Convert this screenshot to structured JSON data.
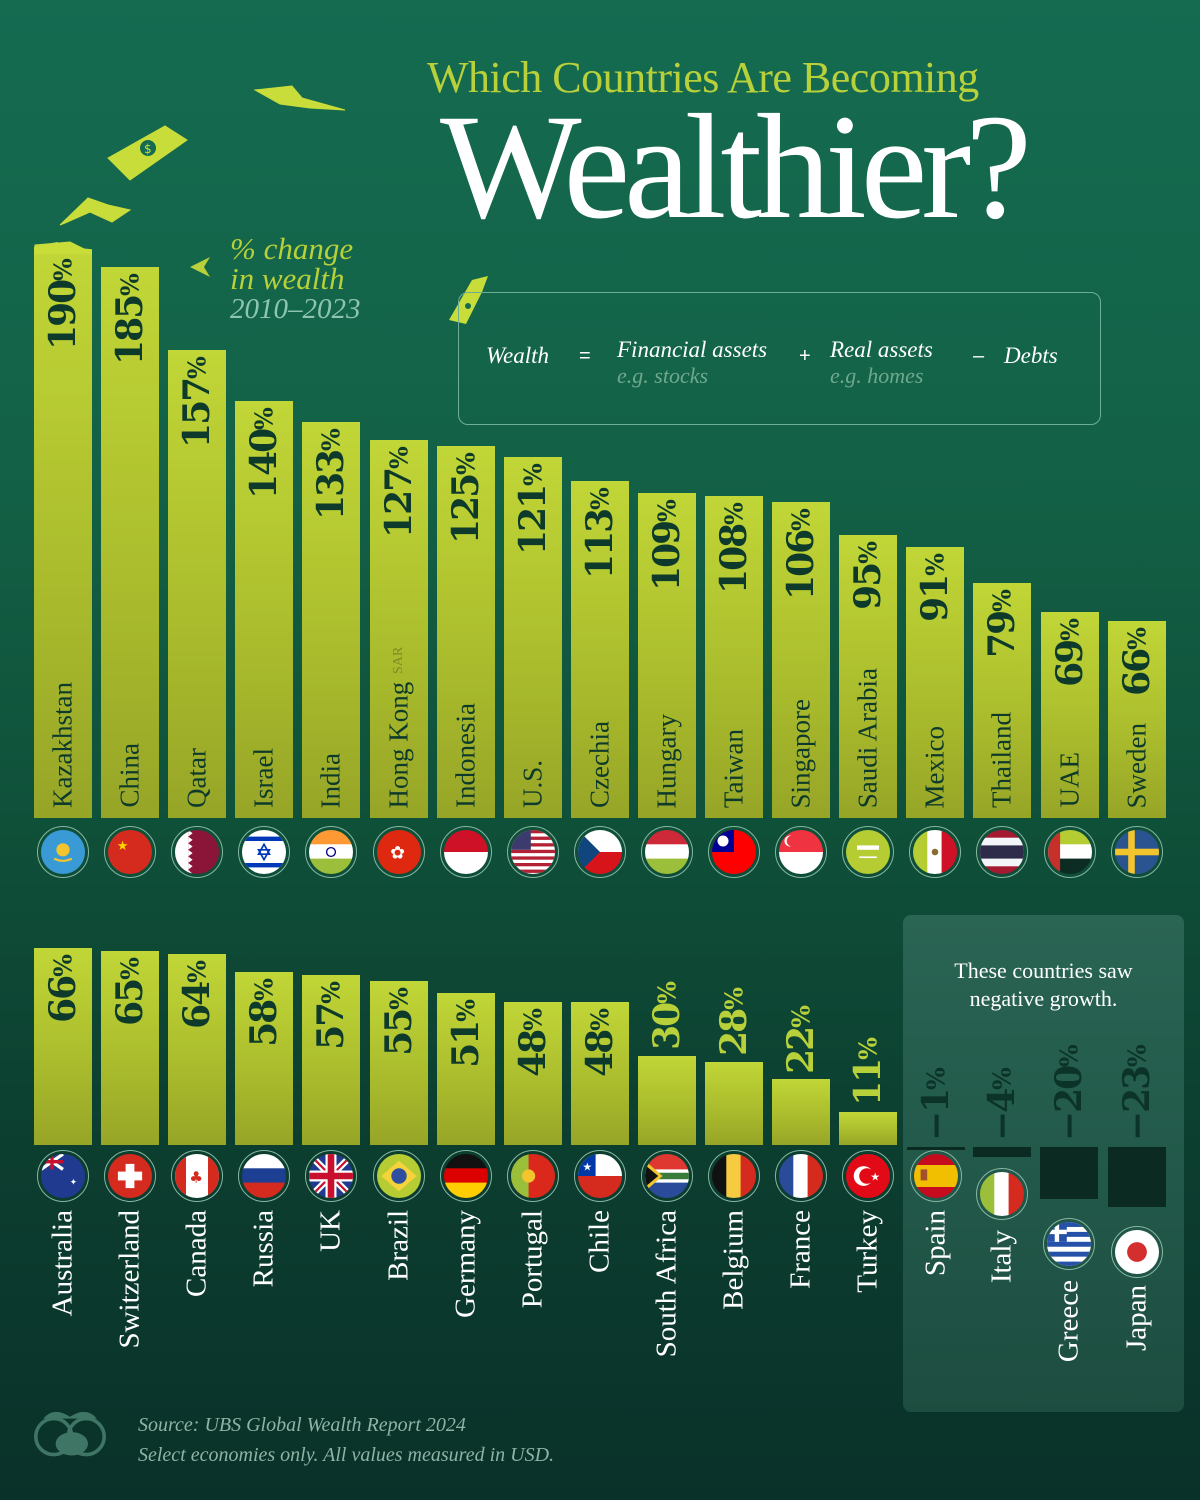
{
  "header": {
    "subtitle": "Which Countries Are Becoming",
    "title": "Wealthier?"
  },
  "legend_note": {
    "line1": "% change",
    "line2": "in wealth",
    "period": "2010–2023",
    "arrow_icon": "arrow-left-icon"
  },
  "formula": {
    "wealth": "Wealth",
    "equals": "=",
    "financial": "Financial assets",
    "financial_example": "e.g. stocks",
    "plus": "+",
    "real": "Real assets",
    "real_example": "e.g. homes",
    "minus": "–",
    "debts": "Debts"
  },
  "negative_panel": {
    "title_line1": "These countries saw",
    "title_line2": "negative growth."
  },
  "footer": {
    "source": "Source: UBS Global Wealth Report 2024",
    "note": "Select economies only. All values measured in USD.",
    "logo_icon": "binoculars-piggybank-logo-icon"
  },
  "colors": {
    "background_top": "#146b50",
    "background_bottom": "#0a3129",
    "bar": "#b5cc33",
    "bar_text": "#0d3a2a",
    "accent": "#b8d03a",
    "negative_bar": "#0a2a22",
    "negative_panel": "#255d4d"
  },
  "chart_data": {
    "type": "bar",
    "title": "Which Countries Are Becoming Wealthier?",
    "subtitle": "% change in wealth 2010–2023",
    "xlabel": "",
    "ylabel": "% change in wealth",
    "grid": false,
    "legend": "none",
    "categories": [
      "Kazakhstan",
      "China",
      "Qatar",
      "Israel",
      "India",
      "Hong Kong SAR",
      "Indonesia",
      "U.S.",
      "Czechia",
      "Hungary",
      "Taiwan",
      "Singapore",
      "Saudi Arabia",
      "Mexico",
      "Thailand",
      "UAE",
      "Sweden",
      "Australia",
      "Switzerland",
      "Canada",
      "Russia",
      "UK",
      "Brazil",
      "Germany",
      "Portugal",
      "Chile",
      "South Africa",
      "Belgium",
      "France",
      "Turkey",
      "Spain",
      "Italy",
      "Greece",
      "Japan"
    ],
    "values": [
      190,
      185,
      157,
      140,
      133,
      127,
      125,
      121,
      113,
      109,
      108,
      106,
      95,
      91,
      79,
      69,
      66,
      66,
      65,
      64,
      58,
      57,
      55,
      51,
      48,
      48,
      30,
      28,
      22,
      11,
      -1,
      -4,
      -20,
      -23
    ],
    "value_labels": [
      "190%",
      "185%",
      "157%",
      "140%",
      "133%",
      "127%",
      "125%",
      "121%",
      "113%",
      "109%",
      "108%",
      "106%",
      "95%",
      "91%",
      "79%",
      "69%",
      "66%",
      "66%",
      "65%",
      "64%",
      "58%",
      "57%",
      "55%",
      "51%",
      "48%",
      "48%",
      "30%",
      "28%",
      "22%",
      "11%",
      "−1%",
      "−4%",
      "−20%",
      "−23%"
    ],
    "ylim": [
      -23,
      190
    ],
    "annotations": [
      "These countries saw negative growth.",
      "Wealth = Financial assets (e.g. stocks) + Real assets (e.g. homes) – Debts"
    ],
    "source": "UBS Global Wealth Report 2024"
  },
  "top_row": [
    {
      "name": "Kazakhstan",
      "value": "190",
      "flag": "flag-kazakhstan-icon"
    },
    {
      "name": "China",
      "value": "185",
      "flag": "flag-china-icon"
    },
    {
      "name": "Qatar",
      "value": "157",
      "flag": "flag-qatar-icon"
    },
    {
      "name": "Israel",
      "value": "140",
      "flag": "flag-israel-icon"
    },
    {
      "name": "India",
      "value": "133",
      "flag": "flag-india-icon"
    },
    {
      "name": "Hong Kong",
      "suffix": "SAR",
      "value": "127",
      "flag": "flag-hong-kong-icon"
    },
    {
      "name": "Indonesia",
      "value": "125",
      "flag": "flag-indonesia-icon"
    },
    {
      "name": "U.S.",
      "value": "121",
      "flag": "flag-us-icon"
    },
    {
      "name": "Czechia",
      "value": "113",
      "flag": "flag-czechia-icon"
    },
    {
      "name": "Hungary",
      "value": "109",
      "flag": "flag-hungary-icon"
    },
    {
      "name": "Taiwan",
      "value": "108",
      "flag": "flag-taiwan-icon"
    },
    {
      "name": "Singapore",
      "value": "106",
      "flag": "flag-singapore-icon"
    },
    {
      "name": "Saudi Arabia",
      "value": "95",
      "flag": "flag-saudi-arabia-icon"
    },
    {
      "name": "Mexico",
      "value": "91",
      "flag": "flag-mexico-icon"
    },
    {
      "name": "Thailand",
      "value": "79",
      "flag": "flag-thailand-icon"
    },
    {
      "name": "UAE",
      "value": "69",
      "flag": "flag-uae-icon"
    },
    {
      "name": "Sweden",
      "value": "66",
      "flag": "flag-sweden-icon"
    }
  ],
  "bottom_row": [
    {
      "name": "Australia",
      "value": "66",
      "flag": "flag-australia-icon"
    },
    {
      "name": "Switzerland",
      "value": "65",
      "flag": "flag-switzerland-icon"
    },
    {
      "name": "Canada",
      "value": "64",
      "flag": "flag-canada-icon"
    },
    {
      "name": "Russia",
      "value": "58",
      "flag": "flag-russia-icon"
    },
    {
      "name": "UK",
      "value": "57",
      "flag": "flag-uk-icon"
    },
    {
      "name": "Brazil",
      "value": "55",
      "flag": "flag-brazil-icon"
    },
    {
      "name": "Germany",
      "value": "51",
      "flag": "flag-germany-icon"
    },
    {
      "name": "Portugal",
      "value": "48",
      "flag": "flag-portugal-icon"
    },
    {
      "name": "Chile",
      "value": "48",
      "flag": "flag-chile-icon"
    },
    {
      "name": "South Africa",
      "value": "30",
      "flag": "flag-south-africa-icon"
    },
    {
      "name": "Belgium",
      "value": "28",
      "flag": "flag-belgium-icon"
    },
    {
      "name": "France",
      "value": "22",
      "flag": "flag-france-icon"
    },
    {
      "name": "Turkey",
      "value": "11",
      "flag": "flag-turkey-icon"
    }
  ],
  "negative_row": [
    {
      "name": "Spain",
      "value": "−1",
      "flag": "flag-spain-icon"
    },
    {
      "name": "Italy",
      "value": "−4",
      "flag": "flag-italy-icon"
    },
    {
      "name": "Greece",
      "value": "−20",
      "flag": "flag-greece-icon"
    },
    {
      "name": "Japan",
      "value": "−23",
      "flag": "flag-japan-icon"
    }
  ],
  "pct_symbol": "%"
}
